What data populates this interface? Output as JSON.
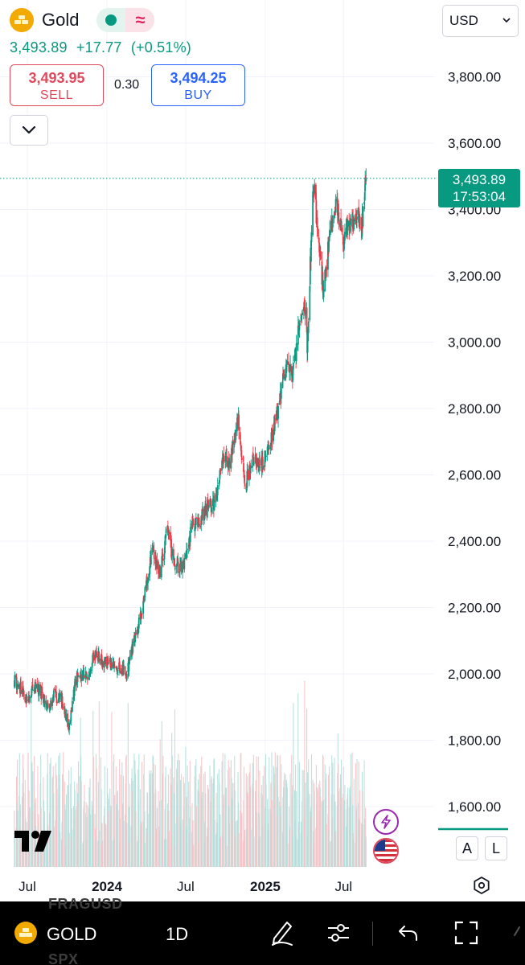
{
  "header": {
    "symbol_name": "Gold",
    "last_price": "3,493.89",
    "change": "+17.77",
    "change_pct": "(+0.51%)"
  },
  "trade": {
    "sell_price": "3,493.95",
    "sell_label": "SELL",
    "spread": "0.30",
    "buy_price": "3,494.25",
    "buy_label": "BUY"
  },
  "currency": {
    "value": "USD"
  },
  "price_axis": {
    "ticks": [
      "3,800.00",
      "3,600.00",
      "3,400.00",
      "3,200.00",
      "3,000.00",
      "2,800.00",
      "2,600.00",
      "2,400.00",
      "2,200.00",
      "2,000.00",
      "1,800.00",
      "1,600.00"
    ]
  },
  "time_axis": {
    "ticks": [
      "Jul",
      "2024",
      "Jul",
      "2025",
      "Jul"
    ]
  },
  "last_price_label": {
    "price": "3,493.89",
    "countdown": "17:53:04"
  },
  "scale_buttons": {
    "auto": "A",
    "log": "L"
  },
  "bottom_bar": {
    "symbol": "GOLD",
    "interval": "1D",
    "ghost_top": "FRAGUSD",
    "ghost_bottom": "SPX"
  },
  "colors": {
    "up": "#089981",
    "down": "#f23645",
    "volume_up": "#b2dfdb",
    "volume_down": "#f7c2c5",
    "grid": "#f0f3fa",
    "accent_buy": "#2962ff",
    "accent_sell": "#e0485c"
  },
  "chart_data": {
    "type": "candlestick",
    "title": "",
    "xlabel": "",
    "ylabel": "",
    "ylim": [
      1500,
      3900
    ],
    "x_range": [
      "2023-06-01",
      "2025-08-22"
    ],
    "x_ticks": [
      "Jul",
      "2024",
      "Jul",
      "2025",
      "Jul"
    ],
    "y_ticks": [
      1600,
      1800,
      2000,
      2200,
      2400,
      2600,
      2800,
      3000,
      3200,
      3400,
      3600,
      3800
    ],
    "last_value": 3493.89,
    "close_path": [
      [
        "2023-06-01",
        1980
      ],
      [
        "2023-06-15",
        1955
      ],
      [
        "2023-07-01",
        1920
      ],
      [
        "2023-07-20",
        1965
      ],
      [
        "2023-08-05",
        1935
      ],
      [
        "2023-08-20",
        1890
      ],
      [
        "2023-09-01",
        1940
      ],
      [
        "2023-09-20",
        1920
      ],
      [
        "2023-10-05",
        1825
      ],
      [
        "2023-10-20",
        1980
      ],
      [
        "2023-11-01",
        1990
      ],
      [
        "2023-11-20",
        2000
      ],
      [
        "2023-12-04",
        2070
      ],
      [
        "2023-12-20",
        2040
      ],
      [
        "2024-01-10",
        2030
      ],
      [
        "2024-01-25",
        2025
      ],
      [
        "2024-02-15",
        2000
      ],
      [
        "2024-03-01",
        2080
      ],
      [
        "2024-03-20",
        2180
      ],
      [
        "2024-04-05",
        2300
      ],
      [
        "2024-04-15",
        2380
      ],
      [
        "2024-05-01",
        2300
      ],
      [
        "2024-05-20",
        2430
      ],
      [
        "2024-06-05",
        2330
      ],
      [
        "2024-06-25",
        2320
      ],
      [
        "2024-07-15",
        2440
      ],
      [
        "2024-08-01",
        2460
      ],
      [
        "2024-08-20",
        2500
      ],
      [
        "2024-09-10",
        2520
      ],
      [
        "2024-09-25",
        2660
      ],
      [
        "2024-10-10",
        2620
      ],
      [
        "2024-10-30",
        2780
      ],
      [
        "2024-11-15",
        2560
      ],
      [
        "2024-12-01",
        2650
      ],
      [
        "2024-12-20",
        2620
      ],
      [
        "2025-01-10",
        2680
      ],
      [
        "2025-01-30",
        2800
      ],
      [
        "2025-02-20",
        2940
      ],
      [
        "2025-03-05",
        2900
      ],
      [
        "2025-03-20",
        3040
      ],
      [
        "2025-04-03",
        3100
      ],
      [
        "2025-04-08",
        2980
      ],
      [
        "2025-04-22",
        3490
      ],
      [
        "2025-05-05",
        3300
      ],
      [
        "2025-05-15",
        3150
      ],
      [
        "2025-05-28",
        3300
      ],
      [
        "2025-06-13",
        3430
      ],
      [
        "2025-06-30",
        3300
      ],
      [
        "2025-07-10",
        3350
      ],
      [
        "2025-07-25",
        3370
      ],
      [
        "2025-08-05",
        3380
      ],
      [
        "2025-08-12",
        3340
      ],
      [
        "2025-08-22",
        3493.89
      ]
    ],
    "volume": {
      "unit": "relative",
      "typical_range": [
        0.1,
        0.55
      ]
    }
  }
}
